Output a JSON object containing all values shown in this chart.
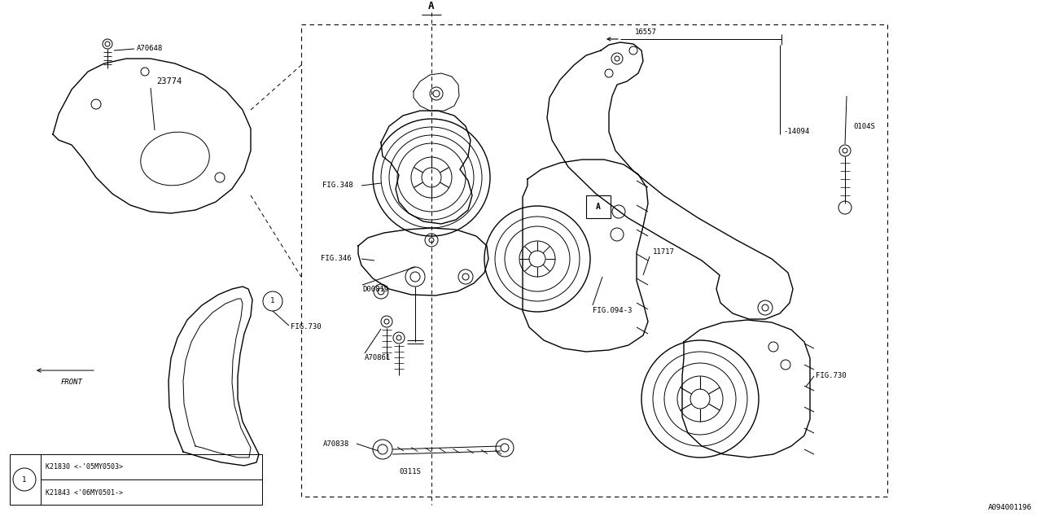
{
  "bg_color": "#ffffff",
  "fig_width": 12.8,
  "fig_height": 6.4,
  "lw_thin": 0.7,
  "lw_med": 1.0,
  "lw_thick": 1.2,
  "font_size": 6.5,
  "diagram_id": "A094001196",
  "legend_rows": [
    "K21830 <-'05MY0503>",
    "K21843 <'06MY0501->"
  ]
}
